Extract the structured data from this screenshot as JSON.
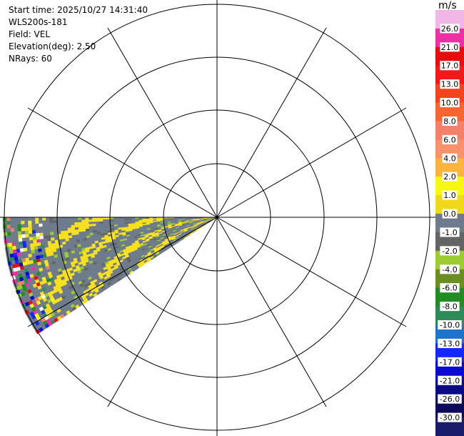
{
  "header": {
    "start_time": "Start time: 2025/10/27 14:31:40",
    "instrument": "WLS200s-181",
    "field": "Field: VEL",
    "elevation": "Elevation(deg): 2.50",
    "nrays": "NRays: 60"
  },
  "colorbar": {
    "unit": "m/s",
    "labels": [
      "26.0",
      "21.0",
      "17.0",
      "13.0",
      "10.0",
      "8.0",
      "6.0",
      "4.0",
      "2.0",
      "1.0",
      "0.0",
      "-1.0",
      "-2.0",
      "-4.0",
      "-6.0",
      "-8.0",
      "-10.0",
      "-13.0",
      "-17.0",
      "-21.0",
      "-26.0",
      "-30.0"
    ],
    "colors": [
      "#f2b6e6",
      "#ee2fa3",
      "#e60d0d",
      "#f11a1a",
      "#f4441f",
      "#f76530",
      "#f5806a",
      "#f8926c",
      "#fbb43e",
      "#f7f714",
      "#f0d81a",
      "#6d7b8d",
      "#646464",
      "#9bcd32",
      "#6b8e23",
      "#228b22",
      "#2e8b57",
      "#1e73cc",
      "#1428ff",
      "#0a0ad2",
      "#0a0a82",
      "#0b0b5a",
      "#1b1b6b"
    ]
  },
  "chart_data": {
    "type": "heatmap",
    "projection": "polar PPI",
    "range_rings": 4,
    "radial_spokes_deg": 30,
    "sector": "western sector between approx 235 and 270 deg azimuth",
    "field": "VEL",
    "colorscale_min": -30.0,
    "colorscale_max": 26.0
  }
}
